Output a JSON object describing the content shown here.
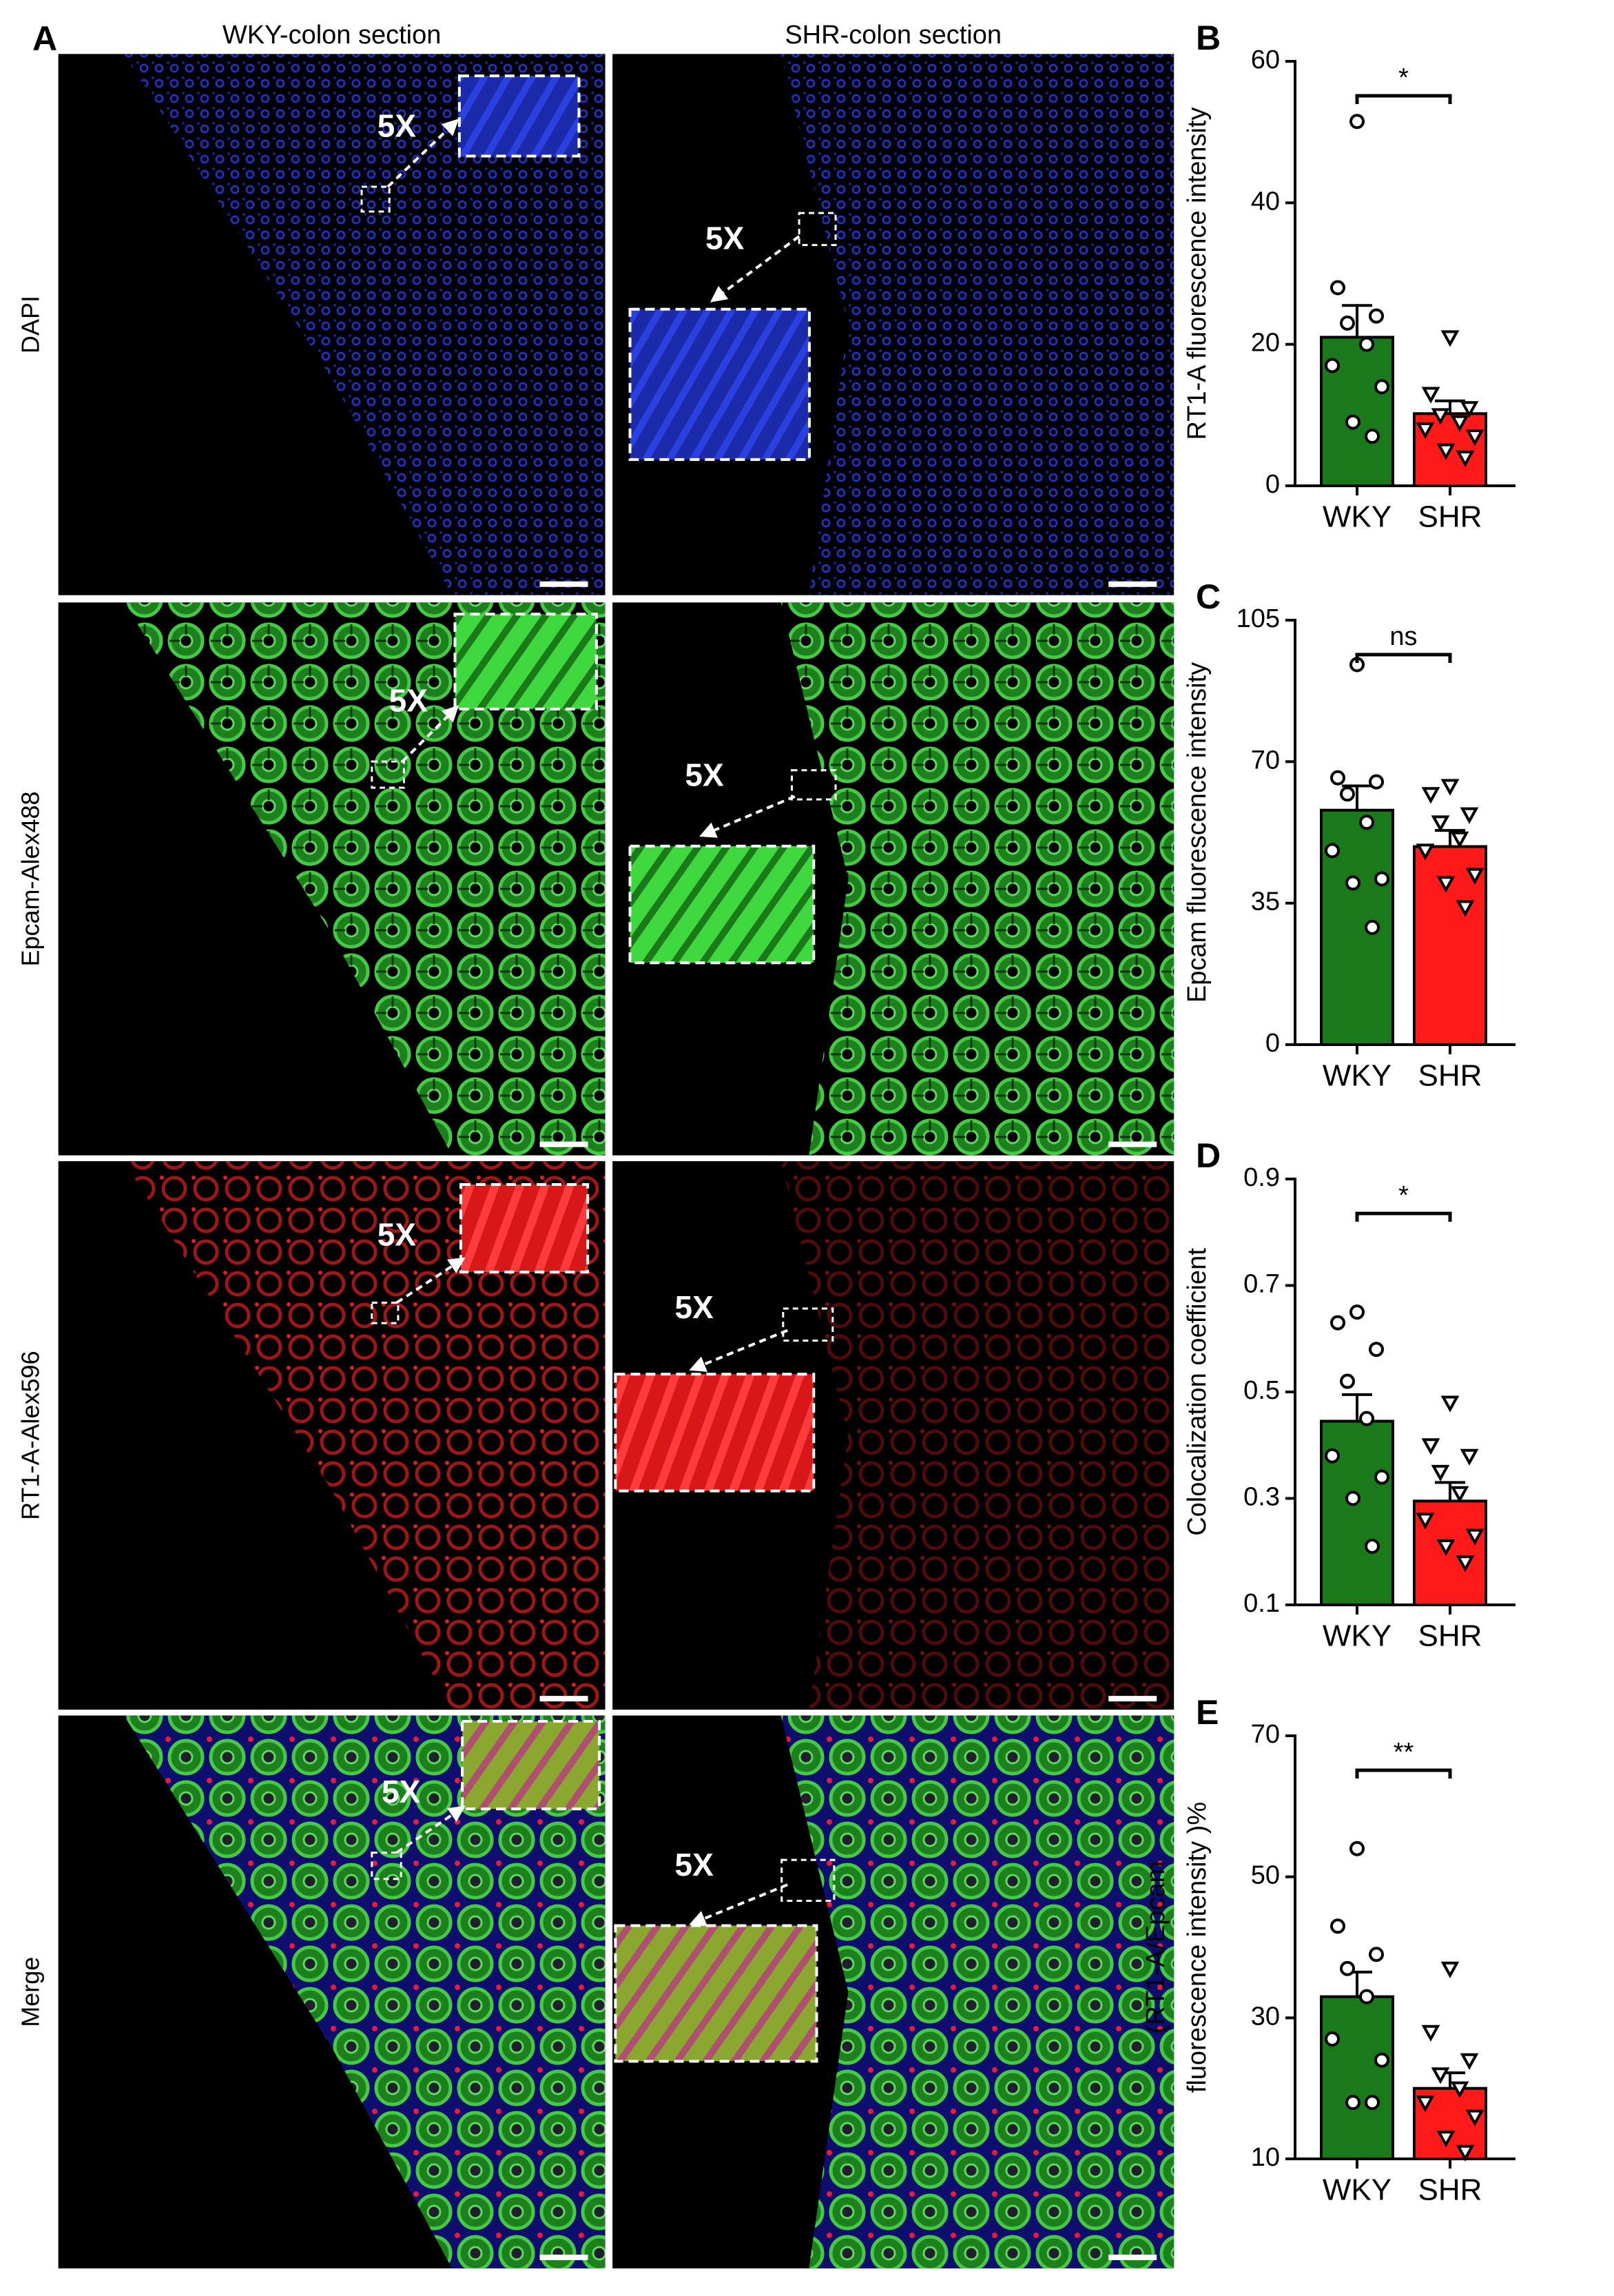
{
  "microscopy": {
    "panel": "A",
    "columns": [
      "WKY-colon section",
      "SHR-colon section"
    ],
    "rows": [
      "DAPI",
      "Epcam-Alex488",
      "RT1-A-Alex596",
      "Merge"
    ],
    "zoom_label": "5X"
  },
  "chart_data": [
    {
      "type": "bar",
      "panel": "B",
      "ylabel": [
        "RT1-A fluorescence intensity"
      ],
      "categories": [
        "WKY",
        "SHR"
      ],
      "colors": [
        "#1a7a1a",
        "#ff1a1a"
      ],
      "markers": [
        "circle",
        "triangle-down"
      ],
      "values": [
        21,
        10.2
      ],
      "errors": [
        4.5,
        1.8
      ],
      "points": [
        [
          51.5,
          28,
          24,
          23,
          20,
          17,
          14,
          9,
          7
        ],
        [
          21,
          13,
          11,
          10,
          9,
          8,
          7,
          5,
          4
        ]
      ],
      "significance": "*",
      "ylim": [
        0,
        60
      ],
      "yticks": [
        0,
        20,
        40,
        60
      ]
    },
    {
      "type": "bar",
      "panel": "C",
      "ylabel": [
        "Epcam fluorescence intensity"
      ],
      "categories": [
        "WKY",
        "SHR"
      ],
      "colors": [
        "#1a7a1a",
        "#ff1a1a"
      ],
      "markers": [
        "circle",
        "triangle-down"
      ],
      "values": [
        58,
        49
      ],
      "errors": [
        6,
        4
      ],
      "points": [
        [
          94,
          66,
          65,
          62,
          55,
          48,
          41,
          40,
          29
        ],
        [
          64,
          62,
          57,
          55,
          51,
          48,
          42,
          40,
          34
        ]
      ],
      "significance": "ns",
      "ylim": [
        0,
        105
      ],
      "yticks": [
        0,
        35,
        70,
        105
      ]
    },
    {
      "type": "bar",
      "panel": "D",
      "ylabel": [
        "Colocalization coefficient"
      ],
      "categories": [
        "WKY",
        "SHR"
      ],
      "colors": [
        "#1a7a1a",
        "#ff1a1a"
      ],
      "markers": [
        "circle",
        "triangle-down"
      ],
      "values": [
        0.445,
        0.295
      ],
      "errors": [
        0.05,
        0.035
      ],
      "points": [
        [
          0.65,
          0.63,
          0.58,
          0.52,
          0.45,
          0.38,
          0.34,
          0.3,
          0.21
        ],
        [
          0.48,
          0.4,
          0.38,
          0.35,
          0.31,
          0.26,
          0.23,
          0.21,
          0.18
        ]
      ],
      "significance": "*",
      "ylim": [
        0.1,
        0.9
      ],
      "yticks": [
        0.1,
        0.3,
        0.5,
        0.7,
        0.9
      ]
    },
    {
      "type": "bar",
      "panel": "E",
      "ylabel": [
        "(RT1-A/Epcam",
        "fluorescence intensity )%"
      ],
      "categories": [
        "WKY",
        "SHR"
      ],
      "colors": [
        "#1a7a1a",
        "#ff1a1a"
      ],
      "markers": [
        "circle",
        "triangle-down"
      ],
      "values": [
        33,
        20
      ],
      "errors": [
        3.5,
        2.2
      ],
      "points": [
        [
          54,
          43,
          39,
          37,
          33,
          27,
          24,
          18,
          18
        ],
        [
          37,
          28,
          24,
          22,
          20,
          18,
          16,
          13,
          11
        ]
      ],
      "significance": "**",
      "ylim": [
        10,
        70
      ],
      "yticks": [
        10,
        30,
        50,
        70
      ]
    }
  ]
}
